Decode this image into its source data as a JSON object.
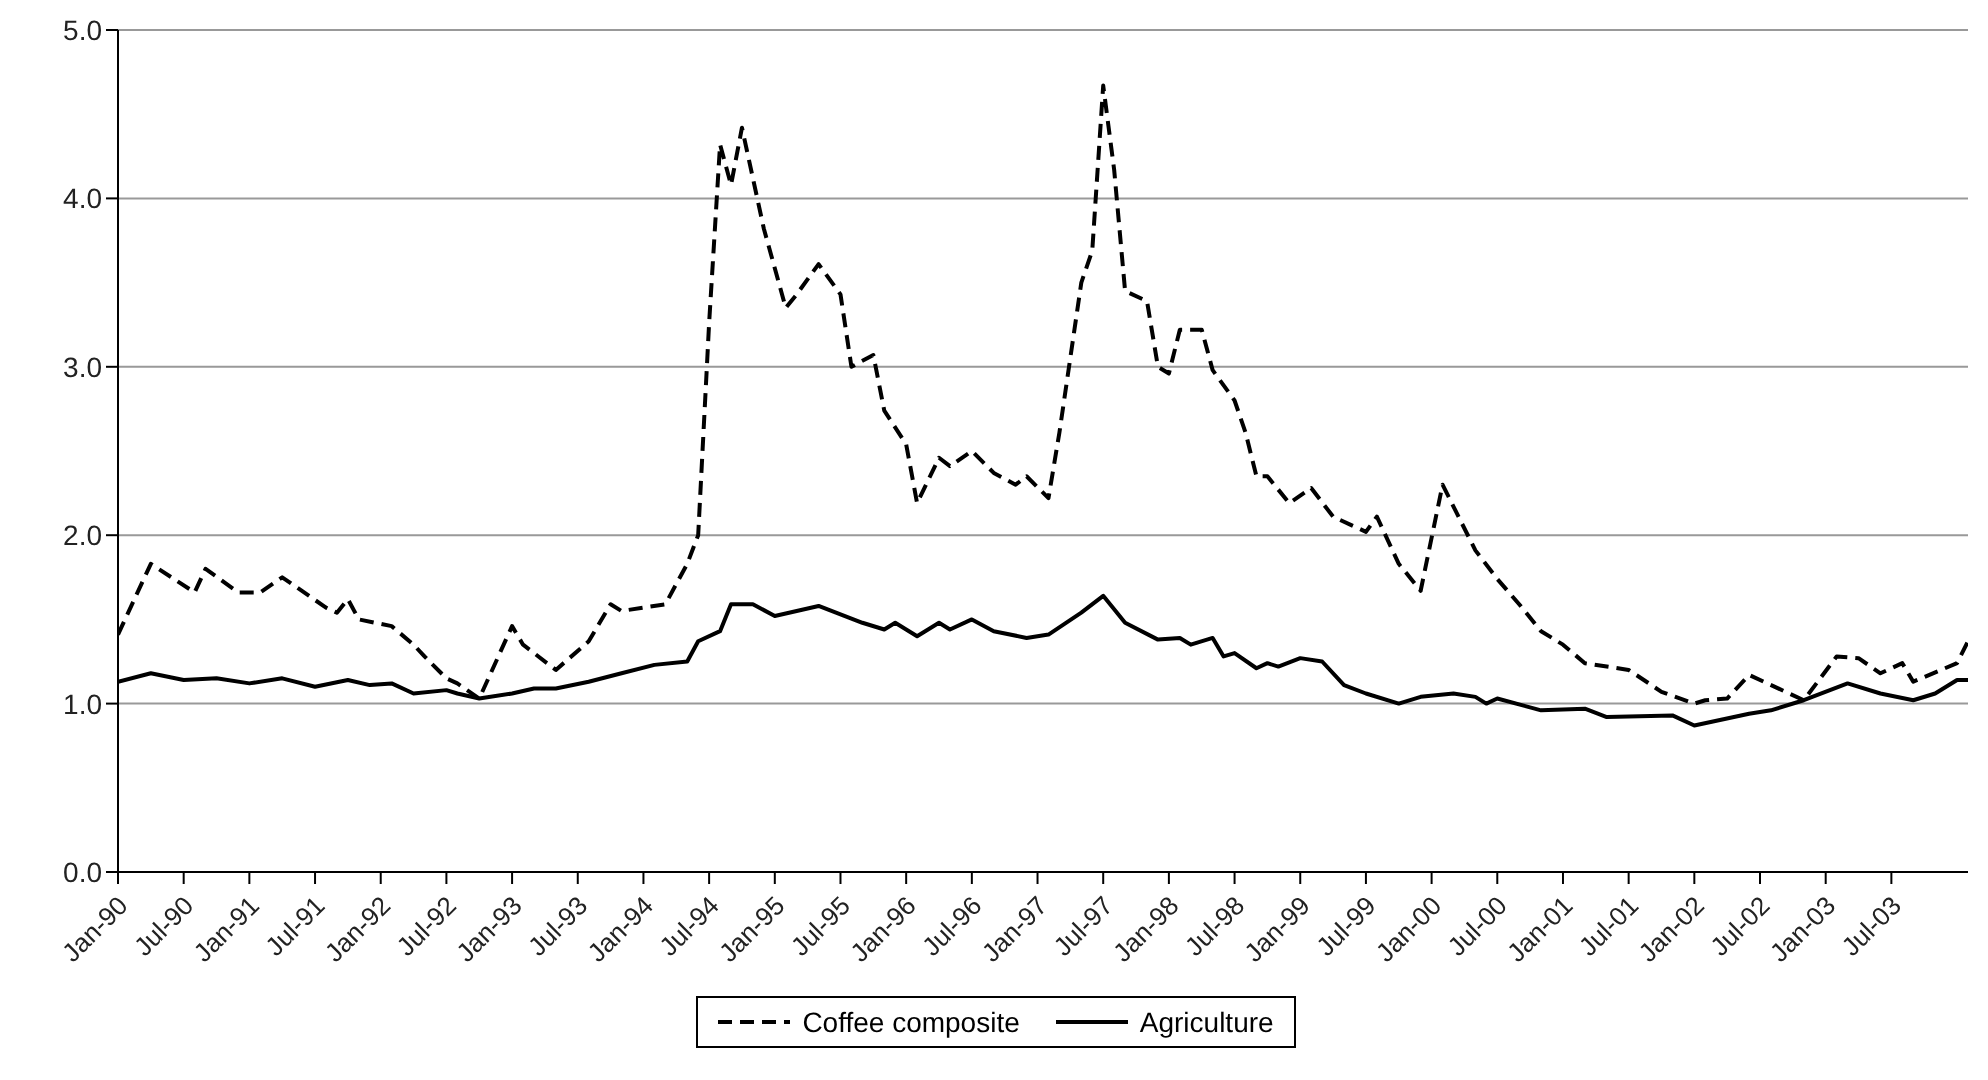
{
  "chart_data": {
    "type": "line",
    "xlim": [
      "1990-01",
      "2004-02"
    ],
    "xticks": [
      {
        "value": "1990-01",
        "label": "Jan-90"
      },
      {
        "value": "1990-07",
        "label": "Jul-90"
      },
      {
        "value": "1991-01",
        "label": "Jan-91"
      },
      {
        "value": "1991-07",
        "label": "Jul-91"
      },
      {
        "value": "1992-01",
        "label": "Jan-92"
      },
      {
        "value": "1992-07",
        "label": "Jul-92"
      },
      {
        "value": "1993-01",
        "label": "Jan-93"
      },
      {
        "value": "1993-07",
        "label": "Jul-93"
      },
      {
        "value": "1994-01",
        "label": "Jan-94"
      },
      {
        "value": "1994-07",
        "label": "Jul-94"
      },
      {
        "value": "1995-01",
        "label": "Jan-95"
      },
      {
        "value": "1995-07",
        "label": "Jul-95"
      },
      {
        "value": "1996-01",
        "label": "Jan-96"
      },
      {
        "value": "1996-07",
        "label": "Jul-96"
      },
      {
        "value": "1997-01",
        "label": "Jan-97"
      },
      {
        "value": "1997-07",
        "label": "Jul-97"
      },
      {
        "value": "1998-01",
        "label": "Jan-98"
      },
      {
        "value": "1998-07",
        "label": "Jul-98"
      },
      {
        "value": "1999-01",
        "label": "Jan-99"
      },
      {
        "value": "1999-07",
        "label": "Jul-99"
      },
      {
        "value": "2000-01",
        "label": "Jan-00"
      },
      {
        "value": "2000-07",
        "label": "Jul-00"
      },
      {
        "value": "2001-01",
        "label": "Jan-01"
      },
      {
        "value": "2001-07",
        "label": "Jul-01"
      },
      {
        "value": "2002-01",
        "label": "Jan-02"
      },
      {
        "value": "2002-07",
        "label": "Jul-02"
      },
      {
        "value": "2003-01",
        "label": "Jan-03"
      },
      {
        "value": "2003-07",
        "label": "Jul-03"
      }
    ],
    "ylim": [
      0,
      5
    ],
    "yticks": [
      {
        "value": 0,
        "label": "0.0"
      },
      {
        "value": 1,
        "label": "1.0"
      },
      {
        "value": 2,
        "label": "2.0"
      },
      {
        "value": 3,
        "label": "3.0"
      },
      {
        "value": 4,
        "label": "4.0"
      },
      {
        "value": 5,
        "label": "5.0"
      }
    ],
    "grid": "y",
    "legend": "bottom",
    "marker": "none",
    "series": [
      {
        "name": "Coffee composite",
        "color": "#000000",
        "line_style": "dashed",
        "x": [
          "1990-01",
          "1990-04",
          "1990-08",
          "1990-09",
          "1990-12",
          "1991-02",
          "1991-04",
          "1991-08",
          "1991-09",
          "1991-10",
          "1991-11",
          "1992-02",
          "1992-04",
          "1992-05",
          "1992-07",
          "1992-08",
          "1992-10",
          "1993-01",
          "1993-02",
          "1993-05",
          "1993-08",
          "1993-10",
          "1993-11",
          "1994-03",
          "1994-05",
          "1994-06",
          "1994-07",
          "1994-08",
          "1994-09",
          "1994-10",
          "1994-12",
          "1995-02",
          "1995-03",
          "1995-05",
          "1995-07",
          "1995-08",
          "1995-10",
          "1995-11",
          "1996-01",
          "1996-02",
          "1996-04",
          "1996-05",
          "1996-07",
          "1996-09",
          "1996-11",
          "1996-12",
          "1997-02",
          "1997-03",
          "1997-05",
          "1997-06",
          "1997-07",
          "1997-08",
          "1997-09",
          "1997-11",
          "1997-12",
          "1998-01",
          "1998-02",
          "1998-04",
          "1998-05",
          "1998-07",
          "1998-08",
          "1998-09",
          "1998-10",
          "1998-12",
          "1999-02",
          "1999-04",
          "1999-07",
          "1999-08",
          "1999-10",
          "1999-12",
          "2000-02",
          "2000-05",
          "2000-07",
          "2000-09",
          "2000-11",
          "2001-01",
          "2001-03",
          "2001-07",
          "2001-10",
          "2002-01",
          "2002-02",
          "2002-04",
          "2002-06",
          "2002-11",
          "2003-02",
          "2003-04",
          "2003-06",
          "2003-08",
          "2003-09",
          "2004-01",
          "2004-02"
        ],
        "values": [
          1.41,
          1.83,
          1.66,
          1.8,
          1.66,
          1.66,
          1.75,
          1.57,
          1.54,
          1.62,
          1.5,
          1.46,
          1.35,
          1.28,
          1.15,
          1.12,
          1.03,
          1.46,
          1.35,
          1.2,
          1.37,
          1.59,
          1.55,
          1.59,
          1.83,
          2.0,
          3.26,
          4.32,
          4.08,
          4.42,
          3.82,
          3.35,
          3.43,
          3.61,
          3.43,
          3.0,
          3.07,
          2.74,
          2.54,
          2.19,
          2.46,
          2.41,
          2.5,
          2.37,
          2.3,
          2.35,
          2.22,
          2.61,
          3.5,
          3.69,
          4.67,
          4.17,
          3.45,
          3.39,
          3.0,
          2.96,
          3.22,
          3.22,
          2.98,
          2.8,
          2.61,
          2.35,
          2.35,
          2.19,
          2.28,
          2.11,
          2.02,
          2.11,
          1.83,
          1.67,
          2.3,
          1.91,
          1.74,
          1.59,
          1.43,
          1.35,
          1.24,
          1.2,
          1.07,
          1.0,
          1.02,
          1.03,
          1.17,
          1.02,
          1.28,
          1.27,
          1.18,
          1.24,
          1.13,
          1.24,
          1.37
        ]
      },
      {
        "name": "Agriculture",
        "color": "#000000",
        "line_style": "solid",
        "x": [
          "1990-01",
          "1990-04",
          "1990-07",
          "1990-10",
          "1991-01",
          "1991-04",
          "1991-07",
          "1991-10",
          "1991-12",
          "1992-02",
          "1992-04",
          "1992-07",
          "1992-08",
          "1992-10",
          "1993-01",
          "1993-03",
          "1993-05",
          "1993-08",
          "1993-11",
          "1994-02",
          "1994-05",
          "1994-06",
          "1994-08",
          "1994-09",
          "1994-11",
          "1995-01",
          "1995-05",
          "1995-09",
          "1995-11",
          "1995-12",
          "1996-02",
          "1996-04",
          "1996-05",
          "1996-07",
          "1996-09",
          "1996-12",
          "1997-02",
          "1997-05",
          "1997-07",
          "1997-09",
          "1997-12",
          "1998-02",
          "1998-03",
          "1998-05",
          "1998-06",
          "1998-07",
          "1998-09",
          "1998-10",
          "1998-11",
          "1999-01",
          "1999-03",
          "1999-05",
          "1999-07",
          "1999-10",
          "1999-12",
          "2000-03",
          "2000-05",
          "2000-06",
          "2000-07",
          "2000-11",
          "2001-03",
          "2001-05",
          "2001-11",
          "2002-01",
          "2002-06",
          "2002-08",
          "2002-11",
          "2003-03",
          "2003-06",
          "2003-09",
          "2003-11",
          "2004-01",
          "2004-02"
        ],
        "values": [
          1.13,
          1.18,
          1.14,
          1.15,
          1.12,
          1.15,
          1.1,
          1.14,
          1.11,
          1.12,
          1.06,
          1.08,
          1.06,
          1.03,
          1.06,
          1.09,
          1.09,
          1.13,
          1.18,
          1.23,
          1.25,
          1.37,
          1.43,
          1.59,
          1.59,
          1.52,
          1.58,
          1.48,
          1.44,
          1.48,
          1.4,
          1.48,
          1.44,
          1.5,
          1.43,
          1.39,
          1.41,
          1.54,
          1.64,
          1.48,
          1.38,
          1.39,
          1.35,
          1.39,
          1.28,
          1.3,
          1.21,
          1.24,
          1.22,
          1.27,
          1.25,
          1.11,
          1.06,
          1.0,
          1.04,
          1.06,
          1.04,
          1.0,
          1.03,
          0.96,
          0.97,
          0.92,
          0.93,
          0.87,
          0.94,
          0.96,
          1.02,
          1.12,
          1.06,
          1.02,
          1.06,
          1.14,
          1.14
        ]
      }
    ]
  }
}
